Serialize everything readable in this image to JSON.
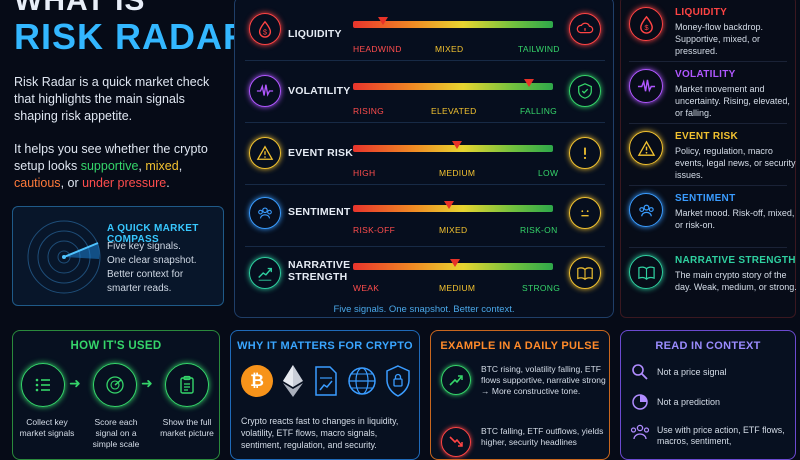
{
  "header": {
    "title_top": "WHAT IS",
    "title_main": "RISK RADAR?"
  },
  "intro": {
    "p1": "Risk Radar is a quick market check that highlights the main signals shaping risk appetite.",
    "p2_prefix": "It helps you see whether the crypto setup looks ",
    "supportive": "supportive",
    "comma1": ", ",
    "mixed": "mixed",
    "comma2": ",",
    "cautious": "cautious",
    "or": ", or ",
    "under_pressure": "under pressure",
    "period": "."
  },
  "compass": {
    "title": "A QUICK MARKET COMPASS",
    "lines": [
      "Five key signals.",
      "One clear snapshot.",
      "Better context for",
      "smarter reads."
    ]
  },
  "signals": [
    {
      "label": "LIQUIDITY",
      "ticks": [
        "HEADWIND",
        "MIXED",
        "TAILWIND"
      ],
      "level": 0.15,
      "left_icon": "dollar-drop-icon",
      "right_icon": "cloud-warning-icon",
      "color": "#ff4444",
      "right_color": "#ff4444"
    },
    {
      "label": "VOLATILITY",
      "ticks": [
        "RISING",
        "ELEVATED",
        "FALLING"
      ],
      "level": 0.88,
      "left_icon": "pulse-wave-icon",
      "right_icon": "shield-check-icon",
      "color": "#b057ff",
      "right_color": "#35d56a"
    },
    {
      "label": "EVENT RISK",
      "ticks": [
        "HIGH",
        "MEDIUM",
        "LOW"
      ],
      "level": 0.52,
      "left_icon": "warning-triangle-icon",
      "right_icon": "exclamation-icon",
      "color": "#f2c230",
      "right_color": "#f2c230"
    },
    {
      "label": "SENTIMENT",
      "ticks": [
        "RISK-OFF",
        "MIXED",
        "RISK-ON"
      ],
      "level": 0.48,
      "left_icon": "people-icon",
      "right_icon": "neutral-face-icon",
      "color": "#3a9cff",
      "right_color": "#f2c230"
    },
    {
      "label": "NARRATIVE\nSTRENGTH",
      "ticks": [
        "WEAK",
        "MEDIUM",
        "STRONG"
      ],
      "level": 0.51,
      "left_icon": "trend-chart-icon",
      "right_icon": "open-book-icon",
      "color": "#2fd0a0",
      "right_color": "#f2c230"
    }
  ],
  "signals_footer": "Five signals. One snapshot. Better context.",
  "legend": [
    {
      "title": "LIQUIDITY",
      "desc": "Money-flow backdrop. Supportive, mixed, or pressured.",
      "color": "#ff4444",
      "icon": "dollar-drop-icon"
    },
    {
      "title": "VOLATILITY",
      "desc": "Market movement and uncertainty. Rising, elevated, or falling.",
      "color": "#b057ff",
      "icon": "pulse-wave-icon"
    },
    {
      "title": "EVENT RISK",
      "desc": "Policy, regulation, macro events, legal news, or security issues.",
      "color": "#f2c230",
      "icon": "warning-triangle-icon"
    },
    {
      "title": "SENTIMENT",
      "desc": "Market mood. Risk-off, mixed, or risk-on.",
      "color": "#3a9cff",
      "icon": "people-icon"
    },
    {
      "title": "NARRATIVE STRENGTH",
      "desc": "The main crypto story of the day. Weak, medium, or strong.",
      "color": "#2fd0a0",
      "icon": "open-book-icon"
    }
  ],
  "how": {
    "title": "HOW IT'S USED",
    "steps": [
      "Collect key market signals",
      "Score each signal on a simple scale",
      "Show the full market picture"
    ]
  },
  "why": {
    "title": "WHY IT MATTERS FOR CRYPTO",
    "text": "Crypto reacts fast to changes in liquidity, volatility, ETF flows, macro signals, sentiment, regulation, and security."
  },
  "pulse": {
    "title": "EXAMPLE IN A DAILY PULSE",
    "ex1": "BTC rising, volatility falling, ETF flows supportive, narrative strong → More constructive tone.",
    "ex2": "BTC falling, ETF outflows, yields higher, security headlines"
  },
  "context": {
    "title": "READ IN CONTEXT",
    "items": [
      "Not a price signal",
      "Not a prediction",
      "Use with price action, ETF flows, macros, sentiment,"
    ]
  },
  "colors": {
    "accent": "#33b7ff",
    "green": "#35d56a",
    "orange": "#ff8a2a",
    "purple": "#9b6cff"
  }
}
